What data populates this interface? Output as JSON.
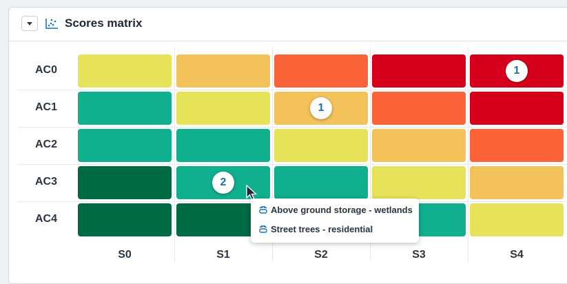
{
  "panel": {
    "title": "Scores matrix",
    "collapse_icon": "chevron-down-icon",
    "title_icon": "scatter-chart-icon"
  },
  "matrix": {
    "rows": [
      "AC0",
      "AC1",
      "AC2",
      "AC3",
      "AC4"
    ],
    "columns": [
      "S0",
      "S1",
      "S2",
      "S3",
      "S4"
    ],
    "colors": {
      "yellow": "#e6e25a",
      "light_orange": "#f4c25a",
      "orange": "#fa6438",
      "red": "#d6001c",
      "teal": "#10b08e",
      "dark_green": "#006a45"
    },
    "cells": [
      [
        "yellow",
        "light_orange",
        "orange",
        "red",
        "red"
      ],
      [
        "teal",
        "yellow",
        "light_orange",
        "orange",
        "red"
      ],
      [
        "teal",
        "teal",
        "yellow",
        "light_orange",
        "orange"
      ],
      [
        "dark_green",
        "teal",
        "teal",
        "yellow",
        "light_orange"
      ],
      [
        "dark_green",
        "dark_green",
        "teal",
        "teal",
        "yellow"
      ]
    ],
    "badges": [
      {
        "row": 0,
        "col": 4,
        "label": "1"
      },
      {
        "row": 1,
        "col": 2,
        "label": "1"
      },
      {
        "row": 3,
        "col": 1,
        "label": "2"
      }
    ]
  },
  "tooltip": {
    "items": [
      {
        "label": "Above ground storage - wetlands",
        "icon": "water-storage-icon"
      },
      {
        "label": "Street trees - residential",
        "icon": "water-storage-icon"
      }
    ]
  }
}
